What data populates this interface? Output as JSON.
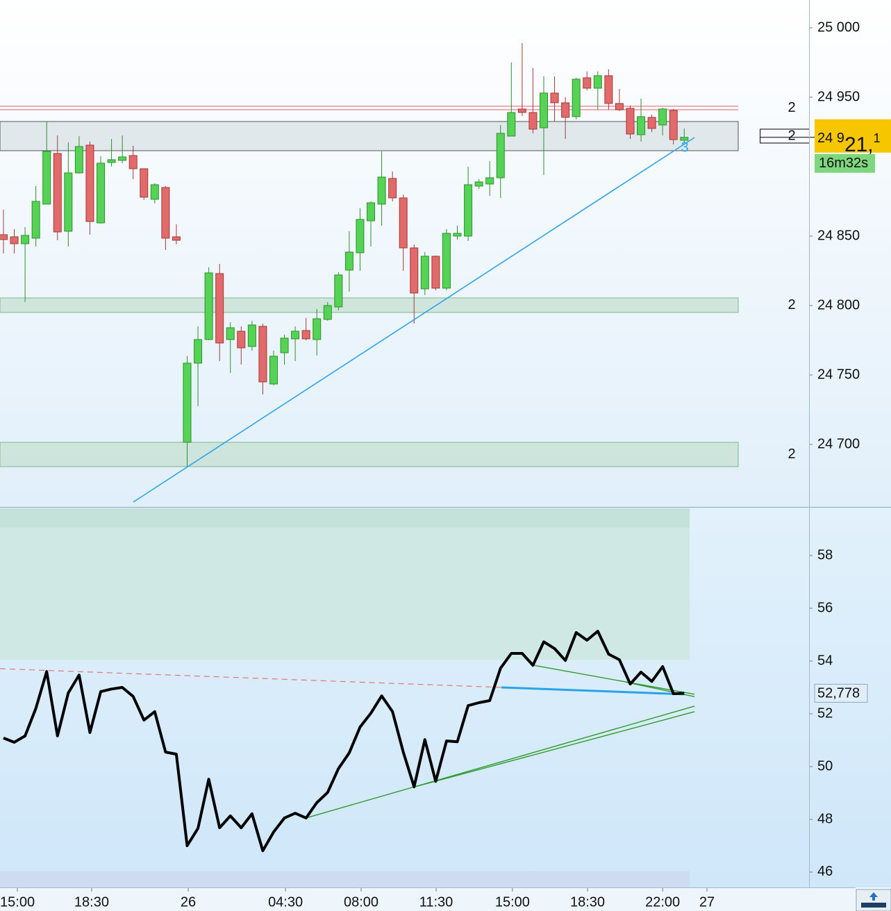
{
  "chart_data": [
    {
      "type": "candlestick",
      "x": [
        0,
        1,
        2,
        3,
        4,
        5,
        6,
        7,
        8,
        9,
        10,
        11,
        12,
        13,
        14,
        15,
        16,
        17,
        18,
        19,
        20,
        21,
        22,
        23,
        24,
        25,
        26,
        27,
        28,
        29,
        30,
        31,
        32,
        33,
        34,
        35,
        36,
        37,
        38,
        39,
        40,
        41,
        42,
        43,
        44,
        45,
        46,
        47,
        48,
        49,
        50,
        51,
        52,
        53,
        54,
        55,
        56,
        57,
        58,
        59,
        60,
        61,
        62,
        63
      ],
      "open": [
        24851,
        24849.5,
        24844.5,
        24848.5,
        24873,
        24909.5,
        24853.5,
        24895.5,
        24915.5,
        24859.5,
        24903,
        24904.5,
        24908,
        24898.5,
        24876.5,
        24885,
        24849.5,
        24701.5,
        24758.5,
        24775.5,
        24823,
        24775.5,
        24781.5,
        24770.5,
        24785,
        24743.5,
        24766,
        24776,
        24782,
        24775.5,
        24790,
        24799,
        24825.5,
        24838,
        24861,
        24873,
        24891.5,
        24877.5,
        24841.5,
        24812,
        24835.5,
        24812.5,
        24850,
        24850,
        24886,
        24887.5,
        24892,
        24922,
        24941.5,
        24939,
        24928,
        24953,
        24946,
        24936,
        24964,
        24956.5,
        24965.5,
        24945.5,
        24942,
        24923,
        24935.5,
        24930,
        24940.5,
        24919
      ],
      "high": [
        24869,
        24855,
        24856.5,
        24886,
        24932.5,
        24922.5,
        24917.5,
        24922,
        24918,
        24907.5,
        24920,
        24922.5,
        24915,
        24898.5,
        24888,
        24886,
        24858.5,
        24763.5,
        24785,
        24827.5,
        24830,
        24788,
        24785,
        24789,
        24787,
        24767.5,
        24779,
        24785,
        24791,
        24797.5,
        24802.5,
        24824,
        24853.5,
        24870,
        24875,
        24911,
        24896.5,
        24880,
        24844,
        24838.5,
        24836,
        24855,
        24857.5,
        24900,
        24891,
        24904,
        24930,
        24975,
        24989,
        24971,
        24965,
        24965,
        24950,
        24964,
        24968.5,
        24968.5,
        24970,
        24956,
        24944,
        24949,
        24937.5,
        24942.5,
        24941.5,
        24927.5
      ],
      "low": [
        24837.5,
        24837.5,
        24802.5,
        24842.5,
        24873,
        24847,
        24842.5,
        24895,
        24851,
        24859,
        24900,
        24902.5,
        24891,
        24876,
        24873.5,
        24840,
        24844,
        24684,
        24727.5,
        24775,
        24760,
        24751.5,
        24757.5,
        24767.5,
        24736,
        24742.5,
        24757.5,
        24760,
        24775,
        24764,
        24789,
        24796.5,
        24810,
        24825,
        24842.5,
        24857.5,
        24875,
        24825,
        24787,
        24807.5,
        24811,
        24811,
        24847.5,
        24846.5,
        24884,
        24879,
        24877.5,
        24922,
        24936.5,
        24924,
        24894,
        24932.5,
        24920,
        24934,
        24955,
        24941,
        24941,
        24940,
        24920,
        24918,
        24925,
        24922.5,
        24916,
        24917.5
      ],
      "close": [
        24847.5,
        24844.5,
        24850.5,
        24875,
        24911,
        24853,
        24895.5,
        24914.5,
        24860.5,
        24902.5,
        24905,
        24907,
        24898.5,
        24878,
        24887,
        24848.5,
        24847,
        24758.5,
        24775.5,
        24823.5,
        24773,
        24784,
        24769.5,
        24786,
        24745,
        24763.5,
        24776.5,
        24781.5,
        24776,
        24790.5,
        24800,
        24822,
        24838.5,
        24862,
        24874,
        24892.5,
        24877.5,
        24841.5,
        24809,
        24835.5,
        24812.5,
        24852,
        24852,
        24887,
        24889,
        24892,
        24924,
        24939,
        24939,
        24927,
        24953,
        24946,
        24935.5,
        24963,
        24956.5,
        24965.5,
        24945.5,
        24941,
        24923.5,
        24936,
        24927.5,
        24941.5,
        24919.5,
        24921.1
      ],
      "up_color": "#54d354",
      "down_color": "#e26a6a",
      "ylim": [
        24656,
        25020
      ],
      "yticks": [
        {
          "value": 24700,
          "label": "24 700"
        },
        {
          "value": 24750,
          "label": "24 750"
        },
        {
          "value": 24800,
          "label": "24 800"
        },
        {
          "value": 24850,
          "label": "24 850"
        },
        {
          "value": 24950,
          "label": "24 950"
        },
        {
          "value": 25000,
          "label": "25 000"
        }
      ],
      "xlim": [
        -0.32,
        74.55
      ],
      "xticks": [
        {
          "value": 1.29,
          "label": "15:00"
        },
        {
          "value": 8.16,
          "label": "18:30"
        },
        {
          "value": 17.1,
          "label": "26"
        },
        {
          "value": 26.1,
          "label": "04:30"
        },
        {
          "value": 33.1,
          "label": "08:00"
        },
        {
          "value": 40.04,
          "label": "11:30"
        },
        {
          "value": 47.1,
          "label": "15:00"
        },
        {
          "value": 54.05,
          "label": "18:30"
        },
        {
          "value": 61.0,
          "label": "22:00"
        },
        {
          "value": 65.1,
          "label": "27"
        }
      ],
      "zones": [
        {
          "from": 24911.5,
          "to": 24932.5,
          "color": "#d9e1e4",
          "label": "2",
          "boxed": true
        },
        {
          "from": 24795,
          "to": 24805.5,
          "color": "#c6e0d2",
          "label": "2"
        },
        {
          "from": 24684,
          "to": 24701.5,
          "color": "#c6e0d2",
          "label": "2"
        }
      ],
      "levels": [
        24943.5,
        24941
      ],
      "level_color": "#e8949b",
      "level_label": "2",
      "trendlines": [
        {
          "start": [
            12.02,
            24658.5
          ],
          "end": [
            63.95,
            24921
          ],
          "color": "#2aa4ea"
        }
      ],
      "trend_label": "3",
      "last_price_parts": [
        "24 9",
        "21,",
        "1"
      ],
      "countdown": "16m32s"
    },
    {
      "type": "line",
      "x": [
        0,
        1,
        2,
        3,
        4,
        5,
        6,
        7,
        8,
        9,
        10,
        11,
        12,
        13,
        14,
        15,
        16,
        17,
        18,
        19,
        20,
        21,
        22,
        23,
        24,
        25,
        26,
        27,
        28,
        29,
        30,
        31,
        32,
        33,
        34,
        35,
        36,
        37,
        38,
        39,
        40,
        41,
        42,
        43,
        44,
        45,
        46,
        47,
        48,
        49,
        50,
        51,
        52,
        53,
        54,
        55,
        56,
        57,
        58,
        59,
        60,
        61,
        62,
        63
      ],
      "values": [
        51.08,
        50.92,
        51.16,
        52.21,
        53.6,
        51.16,
        52.79,
        53.47,
        51.29,
        52.84,
        52.94,
        53.0,
        52.66,
        51.76,
        52.08,
        50.55,
        50.47,
        47.0,
        47.66,
        49.52,
        47.68,
        48.13,
        47.68,
        48.21,
        46.81,
        47.52,
        48.05,
        48.23,
        48.05,
        48.63,
        49.02,
        49.92,
        50.52,
        51.5,
        52.02,
        52.68,
        52.08,
        50.55,
        49.23,
        51.02,
        49.44,
        50.97,
        50.94,
        52.31,
        52.42,
        52.5,
        53.73,
        54.29,
        54.29,
        53.84,
        54.73,
        54.47,
        54.02,
        55.08,
        54.79,
        55.13,
        54.26,
        54.05,
        53.13,
        53.58,
        53.23,
        53.79,
        52.76,
        52.778
      ],
      "color": "#000000",
      "last_label": "52,778",
      "ylim": [
        45.42,
        59.79
      ],
      "yticks": [
        46,
        48,
        50,
        52,
        54,
        56,
        58
      ],
      "bands": [
        {
          "from": 54.05,
          "to": 59.79,
          "color": "#cce6de"
        },
        {
          "from": 59.05,
          "to": 59.79,
          "color": "#c3e0d8"
        },
        {
          "from": 45.42,
          "to": 46.03,
          "color": "#cdd9ee"
        }
      ],
      "lines": [
        {
          "start": [
            -0.32,
            53.71
          ],
          "end": [
            46.08,
            53.0
          ],
          "color": "#e57373",
          "dash": true
        },
        {
          "start": [
            46.08,
            53.0
          ],
          "end": [
            63.0,
            52.74
          ],
          "color": "#29a3e8",
          "dash": false
        },
        {
          "start": [
            49.04,
            53.84
          ],
          "end": [
            63.95,
            52.74
          ],
          "color": "#2e9a2e",
          "dash": false
        },
        {
          "start": [
            57.6,
            53.2
          ],
          "end": [
            63.95,
            52.65
          ],
          "color": "#2e9a2e",
          "dash": false
        },
        {
          "start": [
            28.0,
            48.05
          ],
          "end": [
            63.95,
            52.29
          ],
          "color": "#2e9a2e",
          "dash": false
        },
        {
          "start": [
            38.05,
            49.23
          ],
          "end": [
            63.95,
            52.08
          ],
          "color": "#2e9a2e",
          "dash": false
        }
      ]
    }
  ]
}
